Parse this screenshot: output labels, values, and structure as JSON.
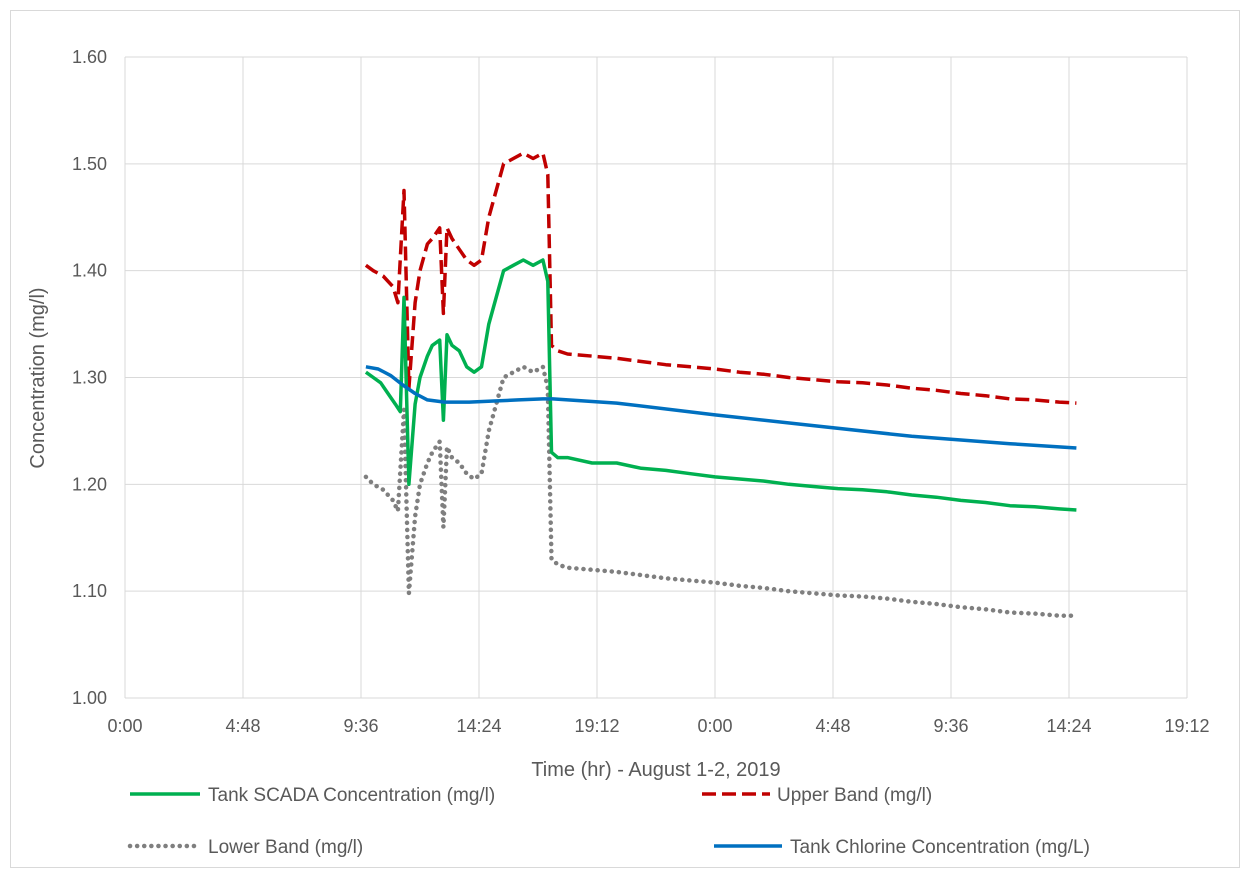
{
  "chart_data": {
    "type": "line",
    "title": "",
    "xlabel": "Time (hr) - August 1-2, 2019",
    "ylabel": "Concentration (mg/l)",
    "xlim": [
      0,
      43.2
    ],
    "ylim": [
      1.0,
      1.6
    ],
    "x_unit": "hours since 0:00 August 1, 2019",
    "x_ticks": [
      "0:00",
      "4:48",
      "9:36",
      "14:24",
      "19:12",
      "0:00",
      "4:48",
      "9:36",
      "14:24",
      "19:12"
    ],
    "y_ticks": [
      "1.00",
      "1.10",
      "1.20",
      "1.30",
      "1.40",
      "1.50",
      "1.60"
    ],
    "grid": true,
    "legend_position": "bottom",
    "series": [
      {
        "name": "Tank SCADA Concentration  (mg/l)",
        "color": "#00b050",
        "style": "solid",
        "points": [
          [
            9.8,
            1.305
          ],
          [
            10.1,
            1.3
          ],
          [
            10.4,
            1.295
          ],
          [
            10.7,
            1.285
          ],
          [
            11.0,
            1.275
          ],
          [
            11.2,
            1.268
          ],
          [
            11.35,
            1.375
          ],
          [
            11.55,
            1.2
          ],
          [
            11.8,
            1.275
          ],
          [
            12.0,
            1.3
          ],
          [
            12.3,
            1.32
          ],
          [
            12.5,
            1.33
          ],
          [
            12.8,
            1.335
          ],
          [
            12.95,
            1.26
          ],
          [
            13.1,
            1.34
          ],
          [
            13.3,
            1.33
          ],
          [
            13.6,
            1.325
          ],
          [
            13.9,
            1.31
          ],
          [
            14.2,
            1.305
          ],
          [
            14.5,
            1.31
          ],
          [
            14.8,
            1.35
          ],
          [
            15.1,
            1.375
          ],
          [
            15.4,
            1.4
          ],
          [
            15.8,
            1.405
          ],
          [
            16.2,
            1.41
          ],
          [
            16.6,
            1.405
          ],
          [
            17.0,
            1.41
          ],
          [
            17.2,
            1.39
          ],
          [
            17.35,
            1.23
          ],
          [
            17.6,
            1.225
          ],
          [
            18.0,
            1.225
          ],
          [
            19.0,
            1.22
          ],
          [
            20.0,
            1.22
          ],
          [
            21.0,
            1.215
          ],
          [
            22.0,
            1.213
          ],
          [
            23.0,
            1.21
          ],
          [
            24.0,
            1.207
          ],
          [
            25.0,
            1.205
          ],
          [
            26.0,
            1.203
          ],
          [
            27.0,
            1.2
          ],
          [
            28.0,
            1.198
          ],
          [
            29.0,
            1.196
          ],
          [
            30.0,
            1.195
          ],
          [
            31.0,
            1.193
          ],
          [
            32.0,
            1.19
          ],
          [
            33.0,
            1.188
          ],
          [
            34.0,
            1.185
          ],
          [
            35.0,
            1.183
          ],
          [
            36.0,
            1.18
          ],
          [
            37.0,
            1.179
          ],
          [
            38.0,
            1.177
          ],
          [
            38.7,
            1.176
          ]
        ]
      },
      {
        "name": "Upper Band (mg/l)",
        "color": "#c00000",
        "style": "dashed",
        "points": [
          [
            9.8,
            1.405
          ],
          [
            10.1,
            1.4
          ],
          [
            10.5,
            1.395
          ],
          [
            10.9,
            1.385
          ],
          [
            11.1,
            1.37
          ],
          [
            11.35,
            1.475
          ],
          [
            11.55,
            1.29
          ],
          [
            11.8,
            1.37
          ],
          [
            12.0,
            1.4
          ],
          [
            12.3,
            1.425
          ],
          [
            12.5,
            1.43
          ],
          [
            12.8,
            1.44
          ],
          [
            12.95,
            1.36
          ],
          [
            13.1,
            1.44
          ],
          [
            13.3,
            1.43
          ],
          [
            13.6,
            1.42
          ],
          [
            13.9,
            1.41
          ],
          [
            14.2,
            1.405
          ],
          [
            14.5,
            1.41
          ],
          [
            14.8,
            1.45
          ],
          [
            15.1,
            1.475
          ],
          [
            15.4,
            1.5
          ],
          [
            15.8,
            1.505
          ],
          [
            16.2,
            1.51
          ],
          [
            16.6,
            1.505
          ],
          [
            17.0,
            1.51
          ],
          [
            17.2,
            1.49
          ],
          [
            17.35,
            1.33
          ],
          [
            17.6,
            1.325
          ],
          [
            18.0,
            1.322
          ],
          [
            19.0,
            1.32
          ],
          [
            20.0,
            1.318
          ],
          [
            21.0,
            1.315
          ],
          [
            22.0,
            1.312
          ],
          [
            23.0,
            1.31
          ],
          [
            24.0,
            1.308
          ],
          [
            25.0,
            1.305
          ],
          [
            26.0,
            1.303
          ],
          [
            27.0,
            1.3
          ],
          [
            28.0,
            1.298
          ],
          [
            29.0,
            1.296
          ],
          [
            30.0,
            1.295
          ],
          [
            31.0,
            1.293
          ],
          [
            32.0,
            1.29
          ],
          [
            33.0,
            1.288
          ],
          [
            34.0,
            1.285
          ],
          [
            35.0,
            1.283
          ],
          [
            36.0,
            1.28
          ],
          [
            37.0,
            1.279
          ],
          [
            38.0,
            1.277
          ],
          [
            38.7,
            1.276
          ]
        ]
      },
      {
        "name": "Lower Band (mg/l)",
        "color": "#7f7f7f",
        "style": "dotted",
        "points": [
          [
            9.8,
            1.207
          ],
          [
            10.1,
            1.2
          ],
          [
            10.5,
            1.195
          ],
          [
            10.9,
            1.185
          ],
          [
            11.1,
            1.175
          ],
          [
            11.35,
            1.27
          ],
          [
            11.55,
            1.098
          ],
          [
            11.8,
            1.17
          ],
          [
            12.0,
            1.2
          ],
          [
            12.3,
            1.22
          ],
          [
            12.5,
            1.23
          ],
          [
            12.8,
            1.24
          ],
          [
            12.95,
            1.16
          ],
          [
            13.1,
            1.235
          ],
          [
            13.3,
            1.225
          ],
          [
            13.6,
            1.22
          ],
          [
            13.9,
            1.21
          ],
          [
            14.2,
            1.205
          ],
          [
            14.5,
            1.21
          ],
          [
            14.8,
            1.25
          ],
          [
            15.1,
            1.275
          ],
          [
            15.4,
            1.3
          ],
          [
            15.8,
            1.305
          ],
          [
            16.2,
            1.31
          ],
          [
            16.6,
            1.305
          ],
          [
            17.0,
            1.31
          ],
          [
            17.2,
            1.29
          ],
          [
            17.35,
            1.13
          ],
          [
            17.6,
            1.125
          ],
          [
            18.0,
            1.122
          ],
          [
            19.0,
            1.12
          ],
          [
            20.0,
            1.118
          ],
          [
            21.0,
            1.115
          ],
          [
            22.0,
            1.112
          ],
          [
            23.0,
            1.11
          ],
          [
            24.0,
            1.108
          ],
          [
            25.0,
            1.105
          ],
          [
            26.0,
            1.103
          ],
          [
            27.0,
            1.1
          ],
          [
            28.0,
            1.098
          ],
          [
            29.0,
            1.096
          ],
          [
            30.0,
            1.095
          ],
          [
            31.0,
            1.093
          ],
          [
            32.0,
            1.09
          ],
          [
            33.0,
            1.088
          ],
          [
            34.0,
            1.085
          ],
          [
            35.0,
            1.083
          ],
          [
            36.0,
            1.08
          ],
          [
            37.0,
            1.079
          ],
          [
            38.0,
            1.077
          ],
          [
            38.7,
            1.077
          ]
        ]
      },
      {
        "name": "Tank Chlorine Concentration (mg/L)",
        "color": "#0070c0",
        "style": "solid",
        "points": [
          [
            9.8,
            1.31
          ],
          [
            10.3,
            1.308
          ],
          [
            10.8,
            1.302
          ],
          [
            11.3,
            1.293
          ],
          [
            11.8,
            1.285
          ],
          [
            12.3,
            1.279
          ],
          [
            13.0,
            1.277
          ],
          [
            14.0,
            1.277
          ],
          [
            15.0,
            1.278
          ],
          [
            16.0,
            1.279
          ],
          [
            17.0,
            1.28
          ],
          [
            17.4,
            1.28
          ],
          [
            20.0,
            1.276
          ],
          [
            24.0,
            1.265
          ],
          [
            28.0,
            1.255
          ],
          [
            32.0,
            1.245
          ],
          [
            36.0,
            1.238
          ],
          [
            38.7,
            1.234
          ]
        ]
      }
    ]
  }
}
